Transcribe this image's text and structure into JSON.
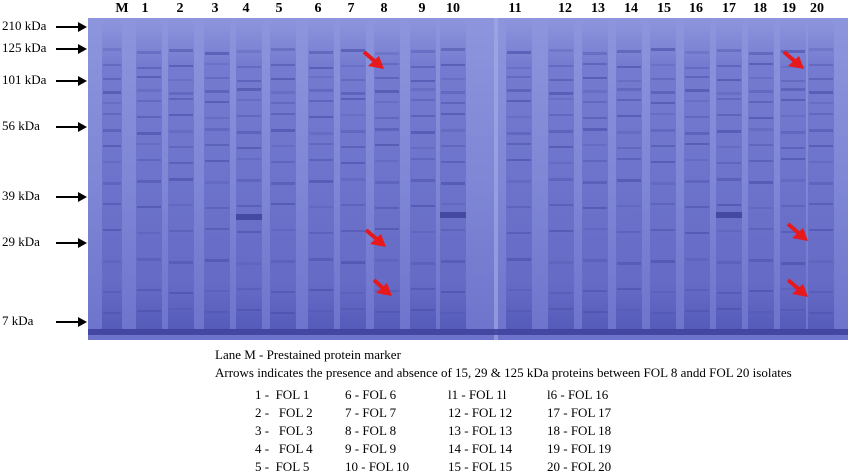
{
  "markers": [
    "210 kDa",
    "125 kDa",
    "101 kDa",
    "56 kDa",
    "39 kDa",
    "29 kDa",
    "7 kDa"
  ],
  "lanes": [
    "M",
    "1",
    "2",
    "3",
    "4",
    "5",
    "6",
    "7",
    "8",
    "9",
    "10",
    "11",
    "12",
    "13",
    "14",
    "15",
    "16",
    "17",
    "18",
    "19",
    "20"
  ],
  "caption": {
    "line1": "Lane M - Prestained protein marker",
    "line2": "Arrows indicates the presence and absence of 15, 29 & 125 kDa proteins between FOL 8 andd FOL 20 isolates"
  },
  "legend": {
    "col1": [
      "1 -  FOL 1",
      "2 -   FOL 2",
      "3 -   FOL 3",
      "4 -   FOL 4",
      "5 -  FOL 5"
    ],
    "col2": [
      "6 - FOL 6",
      "7 - FOL 7",
      "8 - FOL 8",
      "9 - FOL 9",
      "10 - FOL 10"
    ],
    "col3": [
      "l1 - FOL 1l",
      "12 - FOL 12",
      "13 - FOL 13",
      "14 - FOL 14",
      "15 - FOL 15"
    ],
    "col4": [
      "l6 - FOL 16",
      "17 - FOL 17",
      "18 - FOL 18",
      "19 - FOL 19",
      "20 - FOL 20"
    ]
  },
  "colors": {
    "gel": "#7f87d6",
    "gel_dark": "#5d62bf",
    "band": "#4a4fa8",
    "highlight_arrow": "#e8191c"
  }
}
